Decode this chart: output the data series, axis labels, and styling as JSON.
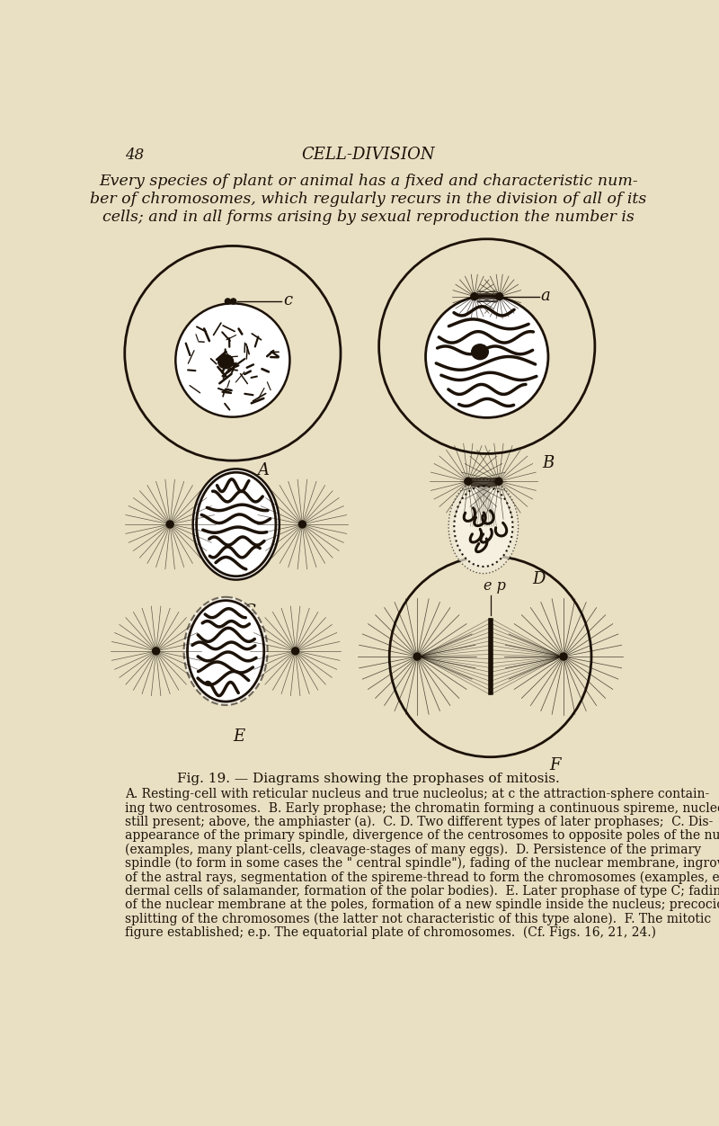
{
  "bg_color": "#e9e0c4",
  "page_number": "48",
  "page_header": "CELL-DIVISION",
  "intro_lines": [
    "Every species of plant or animal has a fixed and characteristic num-",
    "ber of chromosomes, which regularly recurs in the division of all of its",
    "cells; and in all forms arising by sexual reproduction the number is"
  ],
  "fig_title": "Fig. 19. — Diagrams showing the prophases of mitosis.",
  "caption_lines": [
    "A. Resting-cell with reticular nucleus and true nucleolus; at c the attraction-sphere contain-",
    "ing two centrosomes.  B. Early prophase; the chromatin forming a continuous spireme, nucleolus",
    "still present; above, the amphiaster (a).  C. D. Two different types of later prophases;  C. Dis-",
    "appearance of the primary spindle, divergence of the centrosomes to opposite poles of the nucleus",
    "(examples, many plant-cells, cleavage-stages of many eggs).  D. Persistence of the primary",
    "spindle (to form in some cases the \" central spindle\"), fading of the nuclear membrane, ingrowth",
    "of the astral rays, segmentation of the spireme-thread to form the chromosomes (examples, epi-",
    "dermal cells of salamander, formation of the polar bodies).  E. Later prophase of type C; fading",
    "of the nuclear membrane at the poles, formation of a new spindle inside the nucleus; precocious",
    "splitting of the chromosomes (the latter not characteristic of this type alone).  F. The mitotic",
    "figure established; e.p. The equatorial plate of chromosomes.  (Cf. Figs. 16, 21, 24.)"
  ],
  "text_color": "#1c1208",
  "line_color": "#1c1208"
}
